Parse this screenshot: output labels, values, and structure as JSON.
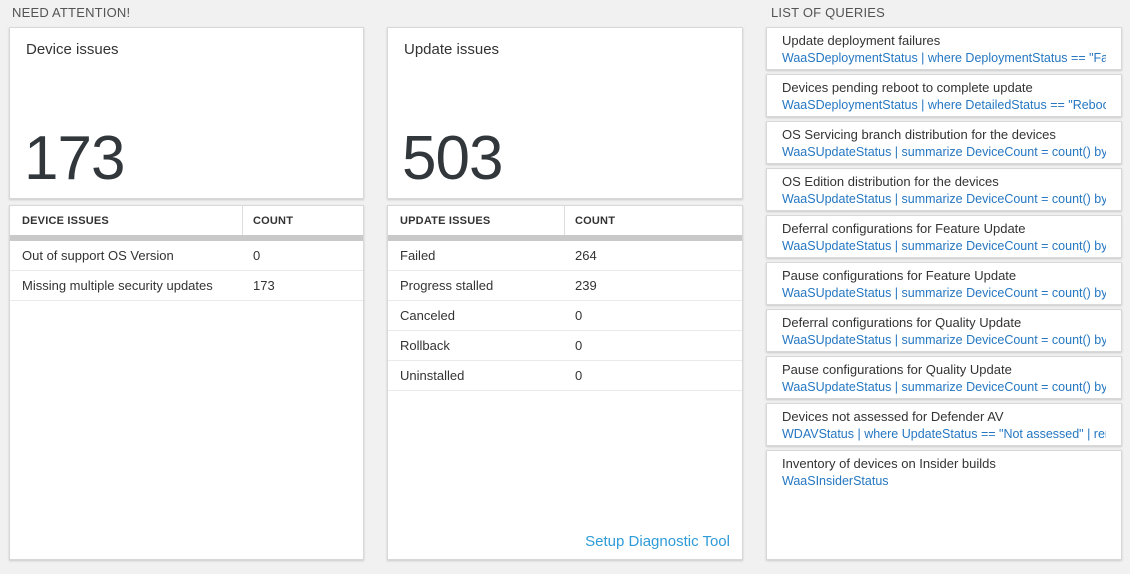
{
  "colors": {
    "query_blue": "#2577c2",
    "link_blue": "#2f9bd8",
    "gray_bar": "#c9c9c9",
    "page_background": "#f1f1f1"
  },
  "need_attention": {
    "title": "NEED ATTENTION!",
    "device_tile": {
      "label": "Device issues",
      "value": "173",
      "headers": [
        "DEVICE ISSUES",
        "COUNT"
      ],
      "rows": [
        {
          "label": "Out of support OS Version",
          "count": "0"
        },
        {
          "label": "Missing multiple security updates",
          "count": "173"
        }
      ]
    },
    "update_tile": {
      "label": "Update issues",
      "value": "503",
      "headers": [
        "UPDATE ISSUES",
        "COUNT"
      ],
      "rows": [
        {
          "label": "Failed",
          "count": "264"
        },
        {
          "label": "Progress stalled",
          "count": "239"
        },
        {
          "label": "Canceled",
          "count": "0"
        },
        {
          "label": "Rollback",
          "count": "0"
        },
        {
          "label": "Uninstalled",
          "count": "0"
        }
      ],
      "footer_link": "Setup Diagnostic Tool"
    }
  },
  "queries": {
    "title": "LIST OF QUERIES",
    "items": [
      {
        "title": "Update deployment failures",
        "query": "WaaSDeploymentStatus | where DeploymentStatus == \"Failed\" |..."
      },
      {
        "title": "Devices pending reboot to complete update",
        "query": "WaaSDeploymentStatus | where DetailedStatus == \"Reboot pend..."
      },
      {
        "title": "OS Servicing branch distribution for the devices",
        "query": "WaaSUpdateStatus | summarize DeviceCount = count() by OSSer..."
      },
      {
        "title": "OS Edition distribution for the devices",
        "query": "WaaSUpdateStatus | summarize DeviceCount = count() by OSEdit..."
      },
      {
        "title": "Deferral configurations for Feature Update",
        "query": "WaaSUpdateStatus | summarize DeviceCount = count() by Featur..."
      },
      {
        "title": "Pause configurations for Feature Update",
        "query": "WaaSUpdateStatus | summarize DeviceCount = count() by Featur..."
      },
      {
        "title": "Deferral configurations for Quality Update",
        "query": "WaaSUpdateStatus | summarize DeviceCount = count() by Qualit..."
      },
      {
        "title": "Pause configurations for Quality Update",
        "query": "WaaSUpdateStatus | summarize DeviceCount = count() by Qualit..."
      },
      {
        "title": "Devices not assessed for Defender AV",
        "query": "WDAVStatus | where UpdateStatus == \"Not assessed\" | render ta..."
      },
      {
        "title": "Inventory of devices on Insider builds",
        "query": "WaaSInsiderStatus"
      }
    ]
  }
}
